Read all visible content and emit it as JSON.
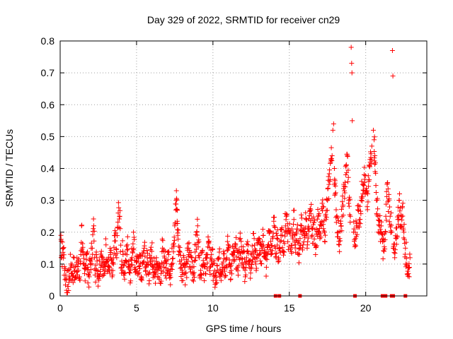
{
  "chart_data": {
    "type": "scatter",
    "title": "Day 329 of 2022, SRMTID for receiver cn29",
    "xlabel": "GPS time / hours",
    "ylabel": "SRMTID / TECUs",
    "xlim": [
      0,
      24
    ],
    "ylim": [
      0,
      0.8
    ],
    "xticks": [
      0,
      5,
      10,
      15,
      20
    ],
    "xtick_labels": [
      "0",
      "5",
      "10",
      "15",
      "20"
    ],
    "yticks": [
      0,
      0.1,
      0.2,
      0.3,
      0.4,
      0.5,
      0.6,
      0.7,
      0.8
    ],
    "ytick_labels": [
      "0",
      "0.1",
      "0.2",
      "0.3",
      "0.4",
      "0.5",
      "0.6",
      "0.7",
      "0.8"
    ],
    "grid": true,
    "marker": "+",
    "color": "#ff0000",
    "series": [
      {
        "name": "SRMTID",
        "points": [
          [
            0.05,
            0.19
          ],
          [
            0.1,
            0.12
          ],
          [
            0.2,
            0.15
          ],
          [
            0.3,
            0.08
          ],
          [
            0.4,
            0.05
          ],
          [
            0.5,
            0.03
          ],
          [
            0.6,
            0.06
          ],
          [
            0.7,
            0.1
          ],
          [
            0.8,
            0.07
          ],
          [
            0.9,
            0.09
          ],
          [
            1.0,
            0.06
          ],
          [
            1.1,
            0.12
          ],
          [
            1.2,
            0.08
          ],
          [
            1.3,
            0.05
          ],
          [
            1.4,
            0.22
          ],
          [
            1.5,
            0.1
          ],
          [
            1.6,
            0.07
          ],
          [
            1.7,
            0.13
          ],
          [
            1.8,
            0.09
          ],
          [
            1.9,
            0.06
          ],
          [
            2.0,
            0.11
          ],
          [
            2.1,
            0.15
          ],
          [
            2.2,
            0.22
          ],
          [
            2.3,
            0.08
          ],
          [
            2.4,
            0.12
          ],
          [
            2.5,
            0.06
          ],
          [
            2.6,
            0.1
          ],
          [
            2.7,
            0.14
          ],
          [
            2.8,
            0.09
          ],
          [
            2.9,
            0.07
          ],
          [
            3.0,
            0.16
          ],
          [
            3.1,
            0.11
          ],
          [
            3.2,
            0.08
          ],
          [
            3.3,
            0.13
          ],
          [
            3.4,
            0.06
          ],
          [
            3.5,
            0.1
          ],
          [
            3.6,
            0.19
          ],
          [
            3.7,
            0.12
          ],
          [
            3.8,
            0.26
          ],
          [
            3.9,
            0.25
          ],
          [
            4.0,
            0.09
          ],
          [
            4.1,
            0.14
          ],
          [
            4.2,
            0.07
          ],
          [
            4.3,
            0.11
          ],
          [
            4.4,
            0.16
          ],
          [
            4.5,
            0.1
          ],
          [
            4.6,
            0.08
          ],
          [
            4.7,
            0.12
          ],
          [
            4.8,
            0.2
          ],
          [
            4.9,
            0.09
          ],
          [
            5.0,
            0.11
          ],
          [
            5.1,
            0.07
          ],
          [
            5.2,
            0.13
          ],
          [
            5.3,
            0.06
          ],
          [
            5.4,
            0.1
          ],
          [
            5.5,
            0.15
          ],
          [
            5.6,
            0.08
          ],
          [
            5.7,
            0.12
          ],
          [
            5.8,
            0.07
          ],
          [
            5.9,
            0.1
          ],
          [
            6.0,
            0.14
          ],
          [
            6.1,
            0.09
          ],
          [
            6.2,
            0.06
          ],
          [
            6.3,
            0.12
          ],
          [
            6.4,
            0.08
          ],
          [
            6.5,
            0.1
          ],
          [
            6.6,
            0.07
          ],
          [
            6.7,
            0.15
          ],
          [
            6.8,
            0.09
          ],
          [
            6.9,
            0.11
          ],
          [
            7.0,
            0.08
          ],
          [
            7.1,
            0.13
          ],
          [
            7.2,
            0.07
          ],
          [
            7.3,
            0.1
          ],
          [
            7.4,
            0.16
          ],
          [
            7.5,
            0.22
          ],
          [
            7.6,
            0.3
          ],
          [
            7.65,
            0.27
          ],
          [
            7.7,
            0.19
          ],
          [
            7.8,
            0.14
          ],
          [
            7.9,
            0.1
          ],
          [
            8.0,
            0.08
          ],
          [
            8.1,
            0.12
          ],
          [
            8.2,
            0.07
          ],
          [
            8.3,
            0.1
          ],
          [
            8.4,
            0.15
          ],
          [
            8.5,
            0.09
          ],
          [
            8.6,
            0.12
          ],
          [
            8.7,
            0.07
          ],
          [
            8.8,
            0.11
          ],
          [
            8.9,
            0.16
          ],
          [
            9.0,
            0.22
          ],
          [
            9.1,
            0.12
          ],
          [
            9.2,
            0.08
          ],
          [
            9.3,
            0.14
          ],
          [
            9.4,
            0.1
          ],
          [
            9.5,
            0.07
          ],
          [
            9.6,
            0.12
          ],
          [
            9.7,
            0.17
          ],
          [
            9.8,
            0.09
          ],
          [
            9.9,
            0.13
          ],
          [
            10.0,
            0.1
          ],
          [
            10.1,
            0.06
          ],
          [
            10.2,
            0.04
          ],
          [
            10.3,
            0.08
          ],
          [
            10.4,
            0.12
          ],
          [
            10.5,
            0.07
          ],
          [
            10.6,
            0.1
          ],
          [
            10.7,
            0.14
          ],
          [
            10.8,
            0.09
          ],
          [
            10.9,
            0.12
          ],
          [
            11.0,
            0.16
          ],
          [
            11.1,
            0.1
          ],
          [
            11.2,
            0.08
          ],
          [
            11.3,
            0.13
          ],
          [
            11.4,
            0.11
          ],
          [
            11.5,
            0.15
          ],
          [
            11.6,
            0.09
          ],
          [
            11.7,
            0.12
          ],
          [
            11.8,
            0.18
          ],
          [
            11.9,
            0.1
          ],
          [
            12.0,
            0.14
          ],
          [
            12.1,
            0.08
          ],
          [
            12.2,
            0.12
          ],
          [
            12.3,
            0.16
          ],
          [
            12.4,
            0.11
          ],
          [
            12.5,
            0.09
          ],
          [
            12.6,
            0.14
          ],
          [
            12.7,
            0.18
          ],
          [
            12.8,
            0.1
          ],
          [
            12.9,
            0.13
          ],
          [
            13.0,
            0.17
          ],
          [
            13.1,
            0.11
          ],
          [
            13.2,
            0.15
          ],
          [
            13.3,
            0.19
          ],
          [
            13.4,
            0.12
          ],
          [
            13.5,
            0.09
          ],
          [
            13.6,
            0.16
          ],
          [
            13.7,
            0.2
          ],
          [
            13.8,
            0.13
          ],
          [
            13.9,
            0.18
          ],
          [
            14.0,
            0.22
          ],
          [
            14.1,
            0.15
          ],
          [
            14.2,
            0.19
          ],
          [
            14.3,
            0.12
          ],
          [
            14.4,
            0.17
          ],
          [
            14.5,
            0.21
          ],
          [
            14.6,
            0.14
          ],
          [
            14.7,
            0.2
          ],
          [
            14.8,
            0.25
          ],
          [
            14.9,
            0.17
          ],
          [
            15.0,
            0.2
          ],
          [
            15.1,
            0.15
          ],
          [
            15.2,
            0.19
          ],
          [
            15.3,
            0.24
          ],
          [
            15.4,
            0.16
          ],
          [
            15.5,
            0.21
          ],
          [
            15.6,
            0.13
          ],
          [
            15.7,
            0.18
          ],
          [
            15.8,
            0.22
          ],
          [
            15.9,
            0.16
          ],
          [
            16.0,
            0.2
          ],
          [
            16.1,
            0.24
          ],
          [
            16.2,
            0.17
          ],
          [
            16.3,
            0.21
          ],
          [
            16.4,
            0.27
          ],
          [
            16.5,
            0.19
          ],
          [
            16.6,
            0.23
          ],
          [
            16.7,
            0.16
          ],
          [
            16.8,
            0.21
          ],
          [
            16.9,
            0.25
          ],
          [
            17.0,
            0.18
          ],
          [
            17.1,
            0.22
          ],
          [
            17.2,
            0.28
          ],
          [
            17.3,
            0.2
          ],
          [
            17.4,
            0.24
          ],
          [
            17.5,
            0.3
          ],
          [
            17.6,
            0.35
          ],
          [
            17.7,
            0.42
          ],
          [
            17.8,
            0.44
          ],
          [
            17.85,
            0.52
          ],
          [
            17.9,
            0.54
          ],
          [
            17.95,
            0.4
          ],
          [
            18.0,
            0.32
          ],
          [
            18.1,
            0.25
          ],
          [
            18.2,
            0.2
          ],
          [
            18.3,
            0.18
          ],
          [
            18.4,
            0.22
          ],
          [
            18.5,
            0.28
          ],
          [
            18.6,
            0.33
          ],
          [
            18.7,
            0.38
          ],
          [
            18.8,
            0.44
          ],
          [
            18.9,
            0.3
          ],
          [
            19.0,
            0.25
          ],
          [
            19.05,
            0.78
          ],
          [
            19.08,
            0.73
          ],
          [
            19.1,
            0.7
          ],
          [
            19.12,
            0.55
          ],
          [
            19.2,
            0.2
          ],
          [
            19.3,
            0.16
          ],
          [
            19.4,
            0.22
          ],
          [
            19.5,
            0.27
          ],
          [
            19.6,
            0.24
          ],
          [
            19.7,
            0.3
          ],
          [
            19.8,
            0.35
          ],
          [
            19.9,
            0.38
          ],
          [
            20.0,
            0.33
          ],
          [
            20.1,
            0.28
          ],
          [
            20.2,
            0.36
          ],
          [
            20.3,
            0.42
          ],
          [
            20.4,
            0.47
          ],
          [
            20.5,
            0.52
          ],
          [
            20.55,
            0.49
          ],
          [
            20.6,
            0.44
          ],
          [
            20.7,
            0.3
          ],
          [
            20.8,
            0.25
          ],
          [
            20.9,
            0.22
          ],
          [
            21.0,
            0.2
          ],
          [
            21.1,
            0.17
          ],
          [
            21.2,
            0.14
          ],
          [
            21.3,
            0.2
          ],
          [
            21.4,
            0.35
          ],
          [
            21.5,
            0.3
          ],
          [
            21.6,
            0.25
          ],
          [
            21.7,
            0.2
          ],
          [
            21.75,
            0.77
          ],
          [
            21.78,
            0.69
          ],
          [
            21.8,
            0.15
          ],
          [
            21.9,
            0.12
          ],
          [
            22.0,
            0.18
          ],
          [
            22.1,
            0.24
          ],
          [
            22.2,
            0.3
          ],
          [
            22.3,
            0.22
          ],
          [
            22.4,
            0.28
          ],
          [
            22.5,
            0.2
          ],
          [
            22.6,
            0.15
          ],
          [
            22.7,
            0.1
          ],
          [
            22.8,
            0.07
          ],
          [
            22.9,
            0.12
          ]
        ]
      }
    ],
    "zero_markers": [
      14.1,
      14.35,
      15.7,
      19.3,
      21.1,
      21.2,
      21.3,
      21.7,
      21.8,
      22.6
    ]
  }
}
